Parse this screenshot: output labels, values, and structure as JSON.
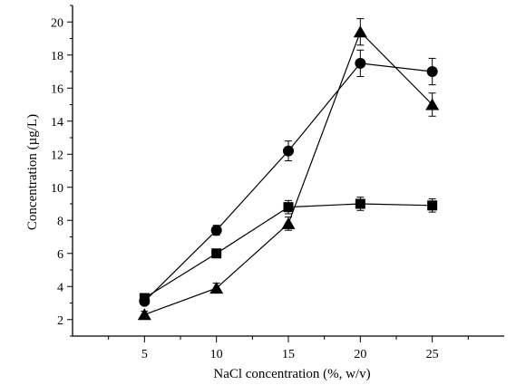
{
  "chart_data": {
    "type": "line",
    "xlabel": "NaCl concentration (%, w/v)",
    "ylabel": "Concentration (µg/L)",
    "x": [
      5,
      10,
      15,
      20,
      25
    ],
    "xlim": [
      0,
      30
    ],
    "ylim": [
      1,
      21
    ],
    "xticks": [
      "5",
      "10",
      "15",
      "20",
      "25"
    ],
    "yticks": [
      "2",
      "4",
      "6",
      "8",
      "10",
      "12",
      "14",
      "16",
      "18",
      "20"
    ],
    "grid": false,
    "series": [
      {
        "marker": "square",
        "values": [
          3.3,
          6.0,
          8.8,
          9.0,
          8.9
        ],
        "errors": [
          0.2,
          0.2,
          0.4,
          0.4,
          0.4
        ]
      },
      {
        "marker": "circle",
        "values": [
          3.1,
          7.4,
          12.2,
          17.5,
          17.0
        ],
        "errors": [
          0.2,
          0.3,
          0.6,
          0.8,
          0.8
        ]
      },
      {
        "marker": "triangle",
        "values": [
          2.3,
          3.9,
          7.8,
          19.4,
          15.0
        ],
        "errors": [
          0.2,
          0.3,
          0.4,
          0.8,
          0.7
        ]
      }
    ],
    "colors": {
      "line": "#000000",
      "marker": "#000000"
    }
  }
}
